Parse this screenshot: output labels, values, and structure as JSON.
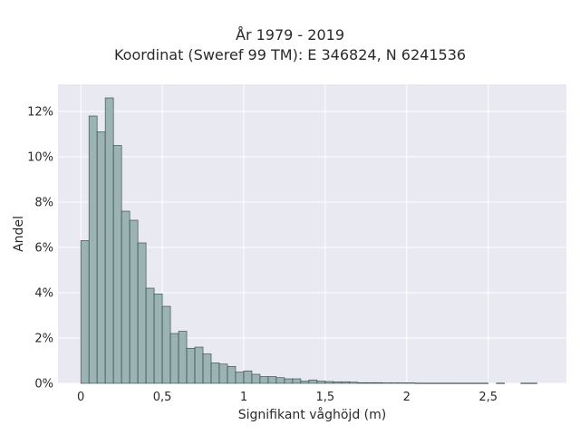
{
  "chart_data": {
    "type": "bar",
    "title": "År 1979 - 2019",
    "subtitle": "Koordinat (Sweref 99 TM): E 346824, N 6241536",
    "xlabel": "Signifikant våghöjd (m)",
    "ylabel": "Andel",
    "xlim": [
      -0.14,
      2.98
    ],
    "ylim": [
      0,
      13.2
    ],
    "bin_width": 0.05,
    "x_ticks": [
      {
        "value": 0,
        "label": "0"
      },
      {
        "value": 0.5,
        "label": "0,5"
      },
      {
        "value": 1,
        "label": "1"
      },
      {
        "value": 1.5,
        "label": "1,5"
      },
      {
        "value": 2,
        "label": "2"
      },
      {
        "value": 2.5,
        "label": "2,5"
      }
    ],
    "y_ticks": [
      {
        "value": 0,
        "label": "0%"
      },
      {
        "value": 2,
        "label": "2%"
      },
      {
        "value": 4,
        "label": "4%"
      },
      {
        "value": 6,
        "label": "6%"
      },
      {
        "value": 8,
        "label": "8%"
      },
      {
        "value": 10,
        "label": "10%"
      },
      {
        "value": 12,
        "label": "12%"
      }
    ],
    "bin_starts": [
      0.0,
      0.05,
      0.1,
      0.15,
      0.2,
      0.25,
      0.3,
      0.35,
      0.4,
      0.45,
      0.5,
      0.55,
      0.6,
      0.65,
      0.7,
      0.75,
      0.8,
      0.85,
      0.9,
      0.95,
      1.0,
      1.05,
      1.1,
      1.15,
      1.2,
      1.25,
      1.3,
      1.35,
      1.4,
      1.45,
      1.5,
      1.55,
      1.6,
      1.65,
      1.7,
      1.75,
      1.8,
      1.85,
      1.9,
      1.95,
      2.0,
      2.05,
      2.1,
      2.15,
      2.2,
      2.25,
      2.3,
      2.35,
      2.4,
      2.45,
      2.5,
      2.55,
      2.6,
      2.65,
      2.7,
      2.75
    ],
    "values": [
      6.3,
      11.8,
      11.1,
      12.6,
      10.5,
      7.6,
      7.2,
      6.2,
      4.2,
      3.95,
      3.4,
      2.2,
      2.3,
      1.55,
      1.6,
      1.3,
      0.9,
      0.85,
      0.75,
      0.5,
      0.55,
      0.4,
      0.3,
      0.3,
      0.25,
      0.2,
      0.2,
      0.1,
      0.15,
      0.1,
      0.08,
      0.07,
      0.07,
      0.05,
      0.03,
      0.03,
      0.03,
      0.02,
      0.02,
      0.02,
      0.02,
      0.01,
      0.01,
      0.01,
      0.01,
      0.01,
      0.01,
      0.01,
      0.01,
      0.01,
      0.0,
      0.01,
      0.0,
      0.0,
      0.01,
      0.01
    ],
    "grid": true,
    "colors": {
      "bar_fill": "#9bb4b3",
      "bar_edge": "#2f3f3e",
      "plot_bg": "#e9e9f1",
      "grid": "#ffffff"
    }
  }
}
